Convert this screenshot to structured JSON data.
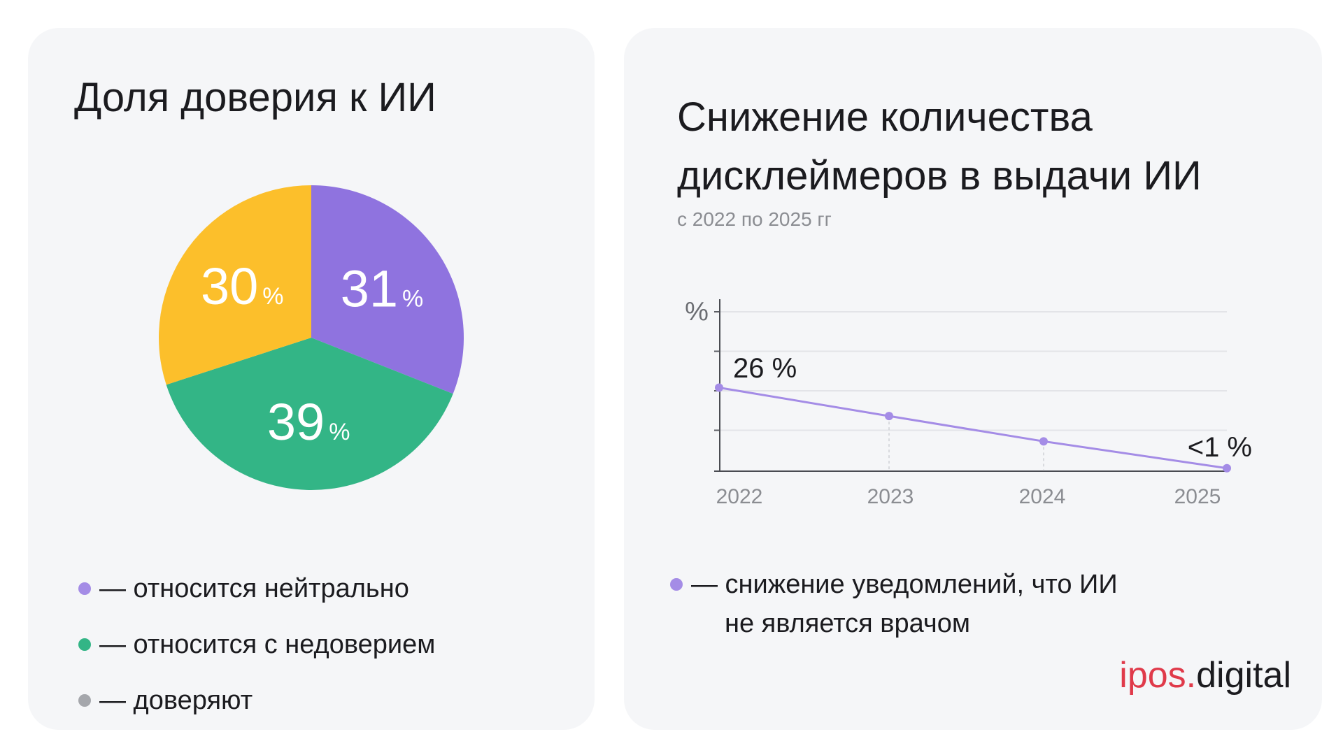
{
  "colors": {
    "purple": "#8f73df",
    "green": "#33b586",
    "yellow": "#fcbf2b",
    "gray": "#a5a7ac",
    "line": "#a48ce6",
    "brand_red": "#e03a4a"
  },
  "left_card": {
    "title": "Доля доверия к ИИ",
    "legend": [
      {
        "label": "— относится нейтрально",
        "color": "#a48ce6"
      },
      {
        "label": "— относится с недоверием",
        "color": "#33b586"
      },
      {
        "label": "— доверяют",
        "color": "#a5a7ac"
      }
    ]
  },
  "right_card": {
    "title_line1": "Снижение количества",
    "title_line2": "дисклеймеров в выдачи ИИ",
    "subtitle": "с 2022 по 2025 гг",
    "legend_line1": "— снижение уведомлений, что ИИ",
    "legend_line2": "не является врачом"
  },
  "brand": {
    "part1": "ipos.",
    "part2": "digital"
  },
  "chart_data": [
    {
      "type": "pie",
      "title": "Доля доверия к ИИ",
      "slices": [
        {
          "label": "относится нейтрально",
          "value": 31,
          "color": "#8f73df",
          "display": "31"
        },
        {
          "label": "относится с недоверием",
          "value": 39,
          "color": "#33b586",
          "display": "39"
        },
        {
          "label": "доверяют",
          "value": 30,
          "color": "#fcbf2b",
          "display": "30"
        }
      ],
      "unit": "%"
    },
    {
      "type": "line",
      "title": "Снижение количества дисклеймеров в выдачи ИИ",
      "subtitle": "с 2022 по 2025 гг",
      "x": [
        "2022",
        "2023",
        "2024",
        "2025"
      ],
      "series": [
        {
          "name": "снижение уведомлений, что ИИ не является врачом",
          "values": [
            26,
            17,
            9,
            0.5
          ]
        }
      ],
      "ylabel": "%",
      "ylim": [
        0,
        50
      ],
      "grid": true,
      "annotations": [
        {
          "x": "2022",
          "text": "26 %"
        },
        {
          "x": "2025",
          "text": "<1 %"
        }
      ]
    }
  ]
}
